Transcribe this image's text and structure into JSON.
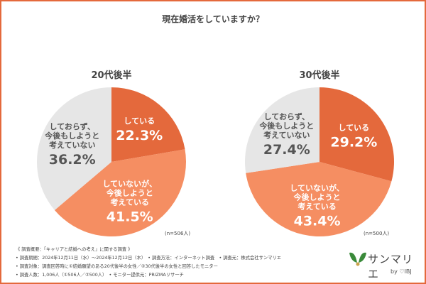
{
  "title": "現在婚活をしていますか？",
  "colors": {
    "doing": "#e4693c",
    "plan": "#f58e62",
    "no": "#e6e6e6",
    "border": "#e4693c"
  },
  "chart_data": [
    {
      "type": "pie",
      "title": "20代後半",
      "note": "(n=506人)",
      "slices": [
        {
          "label": "している",
          "value": 22.3,
          "text": "22.3%"
        },
        {
          "label": "していないが、今後しようと考えている",
          "value": 41.5,
          "text": "41.5%"
        },
        {
          "label": "しておらず、今後もしようと考えていない",
          "value": 36.2,
          "text": "36.2%"
        }
      ]
    },
    {
      "type": "pie",
      "title": "30代後半",
      "note": "(n=500人)",
      "slices": [
        {
          "label": "している",
          "value": 29.2,
          "text": "29.2%"
        },
        {
          "label": "していないが、今後しようと考えている",
          "value": 43.4,
          "text": "43.4%"
        },
        {
          "label": "しておらず、今後もしようと考えていない",
          "value": 27.4,
          "text": "27.4%"
        }
      ]
    }
  ],
  "footer": [
    "《 調査概要：「キャリアと結婚への考え」に関する調査 》",
    "• 調査期間：2024年12月11日（水）〜2024年12月12日（木）　• 調査方法：インターネット調査　• 調査元：株式会社サンマリエ",
    "• 調査対象：調査回答時に①結婚願望のある20代後半の女性／②30代後半の女性と回答したモニター",
    "• 調査人数：1,006人（①506人／②500人）　• モニター提供元：PRIZMAリサーチ"
  ],
  "logo": {
    "name": "サンマリエ",
    "by": "by ♡IBJ"
  }
}
